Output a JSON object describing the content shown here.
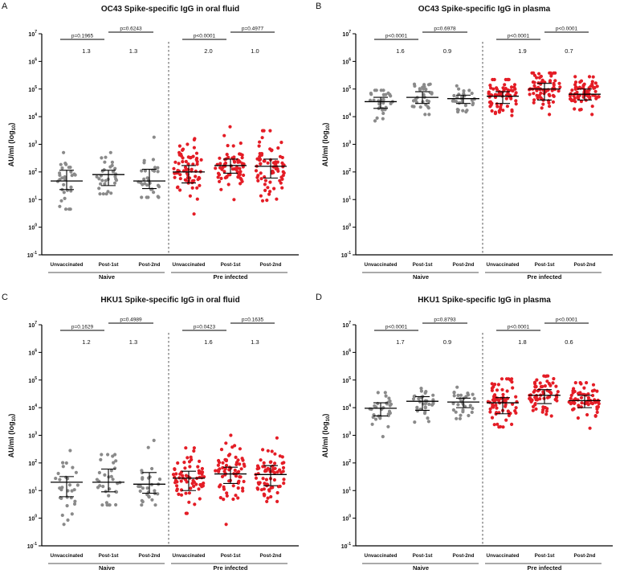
{
  "chart_data": [
    {
      "letter": "A",
      "type": "scatter",
      "title": "OC43 Spike-specific IgG in oral fluid",
      "ylabel": "AU/ml (log",
      "ylabel_sub": "10",
      "ylabel_end": ")",
      "yscale": "log",
      "ylim_exp": [
        -1,
        7
      ],
      "categories": [
        "Unvaccinated",
        "Post-1st",
        "Post-2nd",
        "Unvaccinated",
        "Post-1st",
        "Post-2nd"
      ],
      "groups": [
        {
          "label": "Naive",
          "color": "#8a8a8a"
        },
        {
          "label": "Pre infected",
          "color": "#e41d26"
        }
      ],
      "pvalues": [
        "p=0.1965",
        "p=0.6243",
        "p<0.0001",
        "p=0.4977"
      ],
      "fold_changes": [
        "1.3",
        "1.3",
        "2.0",
        "1.0"
      ],
      "series": [
        {
          "n": 30,
          "median": 47,
          "q1": 23,
          "q3": 115,
          "min": 4.5,
          "max": 500
        },
        {
          "n": 30,
          "median": 80,
          "q1": 32,
          "q3": 115,
          "min": 16,
          "max": 500
        },
        {
          "n": 30,
          "median": 47,
          "q1": 25,
          "q3": 125,
          "min": 12,
          "max": 1800
        },
        {
          "n": 70,
          "median": 100,
          "q1": 40,
          "q3": 170,
          "min": 3,
          "max": 1600
        },
        {
          "n": 70,
          "median": 170,
          "q1": 90,
          "q3": 290,
          "min": 10,
          "max": 4300
        },
        {
          "n": 70,
          "median": 160,
          "q1": 60,
          "q3": 290,
          "min": 9,
          "max": 3100
        }
      ]
    },
    {
      "letter": "B",
      "type": "scatter",
      "title": "OC43 Spike-specific IgG in plasma",
      "ylabel": "AU/ml (log",
      "ylabel_sub": "10",
      "ylabel_end": ")",
      "yscale": "log",
      "ylim_exp": [
        -1,
        7
      ],
      "categories": [
        "Unvaccinated",
        "Post-1st",
        "Post-2nd",
        "Unvaccinated",
        "Post-1st",
        "Post-2nd"
      ],
      "groups": [
        {
          "label": "Naive",
          "color": "#8a8a8a"
        },
        {
          "label": "Pre infected",
          "color": "#e41d26"
        }
      ],
      "pvalues": [
        "p<0.0001",
        "p=0.6978",
        "p<0.0001",
        "p<0.0001"
      ],
      "fold_changes": [
        "1.6",
        "0.9",
        "1.9",
        "0.7"
      ],
      "series": [
        {
          "n": 32,
          "median": 35000,
          "q1": 20000,
          "q3": 50000,
          "min": 7000,
          "max": 90000
        },
        {
          "n": 32,
          "median": 50000,
          "q1": 30000,
          "q3": 80000,
          "min": 12000,
          "max": 150000
        },
        {
          "n": 30,
          "median": 45000,
          "q1": 30000,
          "q3": 60000,
          "min": 15000,
          "max": 130000
        },
        {
          "n": 70,
          "median": 55000,
          "q1": 30000,
          "q3": 80000,
          "min": 11000,
          "max": 220000
        },
        {
          "n": 70,
          "median": 100000,
          "q1": 40000,
          "q3": 160000,
          "min": 12000,
          "max": 380000
        },
        {
          "n": 70,
          "median": 65000,
          "q1": 40000,
          "q3": 100000,
          "min": 12000,
          "max": 280000
        }
      ]
    },
    {
      "letter": "C",
      "type": "scatter",
      "title": "HKU1 Spike-specific IgG in oral fluid",
      "ylabel": "AU/ml (log",
      "ylabel_sub": "10",
      "ylabel_end": ")",
      "yscale": "log",
      "ylim_exp": [
        -1,
        7
      ],
      "categories": [
        "Unvaccinated",
        "Post-1st",
        "Post-2nd",
        "Unvaccinated",
        "Post-1st",
        "Post-2nd"
      ],
      "groups": [
        {
          "label": "Naive",
          "color": "#8a8a8a"
        },
        {
          "label": "Pre infected",
          "color": "#e41d26"
        }
      ],
      "pvalues": [
        "p=0.1629",
        "p=0.4989",
        "p=0.0423",
        "p=0.1635"
      ],
      "fold_changes": [
        "1.2",
        "1.3",
        "1.6",
        "1.3"
      ],
      "series": [
        {
          "n": 30,
          "median": 20,
          "q1": 6,
          "q3": 32,
          "min": 0.6,
          "max": 280
        },
        {
          "n": 32,
          "median": 20,
          "q1": 9,
          "q3": 60,
          "min": 3,
          "max": 200
        },
        {
          "n": 30,
          "median": 17,
          "q1": 8,
          "q3": 45,
          "min": 3,
          "max": 650
        },
        {
          "n": 70,
          "median": 28,
          "q1": 10,
          "q3": 50,
          "min": 1.5,
          "max": 350
        },
        {
          "n": 70,
          "median": 40,
          "q1": 18,
          "q3": 70,
          "min": 0.6,
          "max": 1000
        },
        {
          "n": 70,
          "median": 38,
          "q1": 15,
          "q3": 80,
          "min": 4,
          "max": 800
        }
      ]
    },
    {
      "letter": "D",
      "type": "scatter",
      "title": "HKU1 Spike-specific IgG in plasma",
      "ylabel": "AU/ml (log",
      "ylabel_sub": "10",
      "ylabel_end": ")",
      "yscale": "log",
      "ylim_exp": [
        -1,
        7
      ],
      "categories": [
        "Unvaccinated",
        "Post-1st",
        "Post-2nd",
        "Unvaccinated",
        "Post-1st",
        "Post-2nd"
      ],
      "groups": [
        {
          "label": "Naive",
          "color": "#8a8a8a"
        },
        {
          "label": "Pre infected",
          "color": "#e41d26"
        }
      ],
      "pvalues": [
        "p<0.0001",
        "p=0.8793",
        "p<0.0001",
        "p<0.0001"
      ],
      "fold_changes": [
        "1.7",
        "0.9",
        "1.8",
        "0.6"
      ],
      "series": [
        {
          "n": 30,
          "median": 9500,
          "q1": 5000,
          "q3": 15000,
          "min": 900,
          "max": 35000
        },
        {
          "n": 32,
          "median": 17000,
          "q1": 8000,
          "q3": 25000,
          "min": 3000,
          "max": 50000
        },
        {
          "n": 30,
          "median": 16000,
          "q1": 10000,
          "q3": 22000,
          "min": 4000,
          "max": 55000
        },
        {
          "n": 70,
          "median": 15000,
          "q1": 6000,
          "q3": 23000,
          "min": 2000,
          "max": 110000
        },
        {
          "n": 70,
          "median": 28000,
          "q1": 14000,
          "q3": 45000,
          "min": 5000,
          "max": 140000
        },
        {
          "n": 70,
          "median": 18000,
          "q1": 10000,
          "q3": 28000,
          "min": 1800,
          "max": 80000
        }
      ]
    }
  ]
}
